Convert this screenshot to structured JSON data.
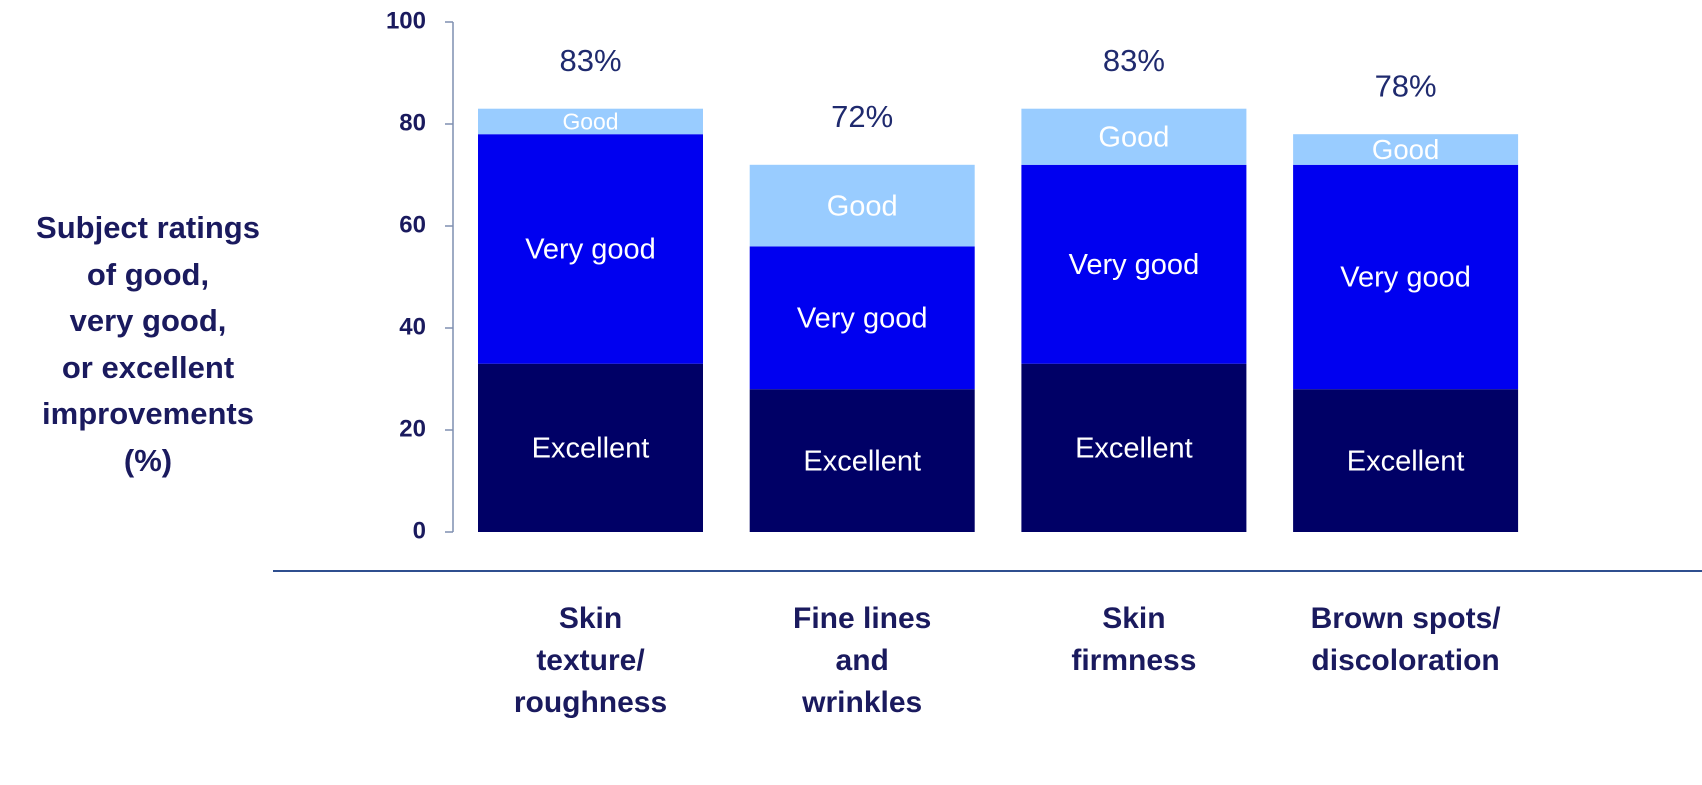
{
  "chart_data": {
    "type": "stacked_bar",
    "ylabel": [
      "Subject ratings",
      "of good,",
      "very good,",
      "or excellent",
      "improvements",
      "(%)"
    ],
    "categories": [
      "Skin\ntexture/\nroughness",
      "Fine lines\nand\nwrinkles",
      "Skin\nfirmness",
      "Brown spots/\ndiscoloration"
    ],
    "series": [
      {
        "name": "Excellent",
        "color": "#000066",
        "values": [
          33,
          28,
          33,
          28
        ]
      },
      {
        "name": "Very good",
        "color": "#0000f0",
        "values": [
          45,
          28,
          39,
          44
        ]
      },
      {
        "name": "Good",
        "color": "#99ccff",
        "values": [
          5,
          16,
          11,
          6
        ]
      }
    ],
    "annotations": [
      "83%",
      "72%",
      "83%",
      "78%"
    ],
    "ylim": [
      0,
      100
    ],
    "yticks": [
      0,
      20,
      40,
      60,
      80,
      100
    ]
  }
}
